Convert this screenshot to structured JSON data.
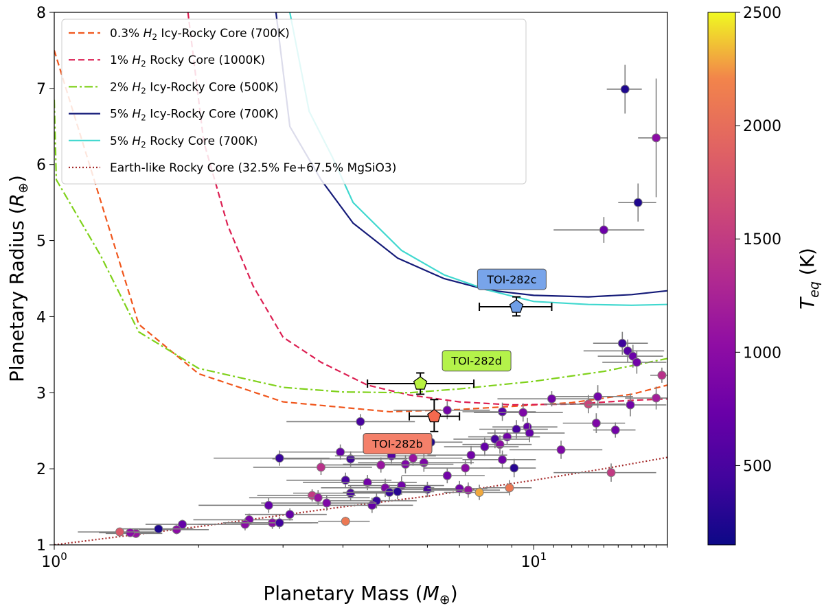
{
  "chart_data": {
    "type": "scatter",
    "title": "",
    "xlabel": "Planetary Mass",
    "xlabel_sym": "M",
    "ylabel": "Planetary Radius",
    "ylabel_sym": "R",
    "earth_symbol": "⊕",
    "xscale": "log",
    "xlim": [
      1,
      19
    ],
    "ylim": [
      1,
      8
    ],
    "x_ticks": [
      {
        "v": 1,
        "base": "10",
        "exp": "0"
      },
      {
        "v": 10,
        "base": "10",
        "exp": "1"
      }
    ],
    "y_ticks": [
      1,
      2,
      3,
      4,
      5,
      6,
      7,
      8
    ],
    "colorbar": {
      "label": "T",
      "label_sub": "eq",
      "unit": "(K)",
      "range": [
        150,
        2500
      ],
      "ticks": [
        500,
        1000,
        1500,
        2000,
        2500
      ]
    },
    "legend_position": "top-left",
    "models": [
      {
        "name": "0.3% H2 Icy-Rocky Core (700K)",
        "pre": "0.3% ",
        "h2": "H",
        "post": " Icy-Rocky Core (700K)",
        "color": "#f0561c",
        "style": "dashed",
        "points": [
          [
            1,
            7.5
          ],
          [
            1.5,
            3.9
          ],
          [
            2,
            3.25
          ],
          [
            3,
            2.88
          ],
          [
            5,
            2.75
          ],
          [
            7,
            2.78
          ],
          [
            9,
            2.82
          ],
          [
            12,
            2.87
          ],
          [
            16,
            2.98
          ],
          [
            19,
            3.1
          ]
        ]
      },
      {
        "name": "1% H2 Rocky Core (1000K)",
        "pre": "1% ",
        "h2": "H",
        "post": " Rocky Core (1000K)",
        "color": "#dc1f52",
        "style": "dashed",
        "points": [
          [
            1.9,
            8
          ],
          [
            2.05,
            6.3
          ],
          [
            2.3,
            5.2
          ],
          [
            2.6,
            4.4
          ],
          [
            3,
            3.73
          ],
          [
            3.6,
            3.4
          ],
          [
            4.5,
            3.1
          ],
          [
            5.5,
            2.97
          ],
          [
            7,
            2.88
          ],
          [
            9,
            2.84
          ],
          [
            12,
            2.85
          ],
          [
            16,
            2.9
          ],
          [
            19,
            2.92
          ]
        ]
      },
      {
        "name": "2% H2 Icy-Rocky Core (500K)",
        "pre": "2% ",
        "h2": "H",
        "post": " Icy-Rocky Core (500K)",
        "color": "#7fd11a",
        "style": "dashdot",
        "points": [
          [
            1,
            6.85
          ],
          [
            1.01,
            5.8
          ],
          [
            1.25,
            4.8
          ],
          [
            1.5,
            3.8
          ],
          [
            2,
            3.32
          ],
          [
            3,
            3.07
          ],
          [
            4,
            3.01
          ],
          [
            5.5,
            3.0
          ],
          [
            7,
            3.05
          ],
          [
            10,
            3.15
          ],
          [
            14,
            3.28
          ],
          [
            19,
            3.45
          ]
        ]
      },
      {
        "name": "5% H2 Icy-Rocky Core (700K)",
        "pre": "5% ",
        "h2": "H",
        "post": " Icy-Rocky Core (700K)",
        "color": "#141a78",
        "style": "solid",
        "points": [
          [
            2.9,
            8
          ],
          [
            3.1,
            6.5
          ],
          [
            3.6,
            5.8
          ],
          [
            4.2,
            5.23
          ],
          [
            5.2,
            4.77
          ],
          [
            6.5,
            4.5
          ],
          [
            8,
            4.35
          ],
          [
            10,
            4.28
          ],
          [
            13,
            4.26
          ],
          [
            16,
            4.29
          ],
          [
            19,
            4.34
          ]
        ]
      },
      {
        "name": "5% H2 Rocky Core (700K)",
        "pre": "5% ",
        "h2": "H",
        "post": " Rocky Core (700K)",
        "color": "#40d8cf",
        "style": "solid",
        "points": [
          [
            3.1,
            8
          ],
          [
            3.4,
            6.7
          ],
          [
            3.8,
            6.1
          ],
          [
            4.2,
            5.5
          ],
          [
            5.3,
            4.87
          ],
          [
            6.5,
            4.55
          ],
          [
            8,
            4.35
          ],
          [
            10,
            4.2
          ],
          [
            13,
            4.16
          ],
          [
            16,
            4.15
          ],
          [
            19,
            4.16
          ]
        ]
      },
      {
        "name": "Earth-like Rocky Core (32.5% Fe+67.5% MgSiO3)",
        "pre": "Earth-like Rocky Core (32.5% Fe+67.5% MgSiO3)",
        "h2": "",
        "post": "",
        "color": "#a52a2a",
        "style": "dotted",
        "points": [
          [
            1,
            1.0
          ],
          [
            2,
            1.24
          ],
          [
            4,
            1.5
          ],
          [
            6,
            1.64
          ],
          [
            10,
            1.85
          ],
          [
            14,
            2.0
          ],
          [
            19,
            2.15
          ]
        ]
      }
    ],
    "toi_planets": [
      {
        "name": "TOI-282b",
        "mass": 6.2,
        "mass_err": [
          0.7,
          0.8
        ],
        "radius": 2.69,
        "radius_err": [
          0.2,
          0.22
        ],
        "color": "#f4694e",
        "label_box": "#f4806a",
        "label_anchor": [
          5.2,
          2.33
        ]
      },
      {
        "name": "TOI-282c",
        "mass": 9.2,
        "mass_err": [
          1.5,
          1.7
        ],
        "radius": 4.13,
        "radius_err": [
          0.12,
          0.13
        ],
        "color": "#6f9ee6",
        "label_box": "#78a4ea",
        "label_anchor": [
          9.0,
          4.49
        ]
      },
      {
        "name": "TOI-282d",
        "mass": 5.8,
        "mass_err": [
          1.3,
          1.7
        ],
        "radius": 3.12,
        "radius_err": [
          0.14,
          0.14
        ],
        "color": "#b9f241",
        "label_box": "#b4f24a",
        "label_anchor": [
          7.6,
          3.42
        ]
      }
    ],
    "planets": [
      {
        "m": 15.5,
        "r": 6.99,
        "ex": 1.3,
        "ey": 0.32,
        "t": 250
      },
      {
        "m": 18.0,
        "r": 6.35,
        "ex": 1.5,
        "ey": 0.78,
        "t": 1000
      },
      {
        "m": 16.5,
        "r": 5.5,
        "ex": 1.5,
        "ey": 0.25,
        "t": 250
      },
      {
        "m": 14.0,
        "r": 5.14,
        "ex": 3.0,
        "ey": 0.17,
        "t": 750
      },
      {
        "m": 15.3,
        "r": 3.65,
        "ex": 2.0,
        "ey": 0.15,
        "t": 420
      },
      {
        "m": 15.7,
        "r": 3.55,
        "ex": 3.0,
        "ey": 0.15,
        "t": 600
      },
      {
        "m": 16.1,
        "r": 3.48,
        "ex": 2.5,
        "ey": 0.15,
        "t": 750
      },
      {
        "m": 16.4,
        "r": 3.4,
        "ex": 2.5,
        "ey": 0.15,
        "t": 800
      },
      {
        "m": 18.5,
        "r": 3.23,
        "ex": 1.0,
        "ey": 0.1,
        "t": 1400
      },
      {
        "m": 18.0,
        "r": 2.93,
        "ex": 2.5,
        "ey": 0.15,
        "t": 1200
      },
      {
        "m": 13.0,
        "r": 2.85,
        "ex": 2.5,
        "ey": 0.12,
        "t": 1600
      },
      {
        "m": 13.6,
        "r": 2.95,
        "ex": 2.5,
        "ey": 0.15,
        "t": 800
      },
      {
        "m": 10.9,
        "r": 2.92,
        "ex": 2.5,
        "ey": 0.1,
        "t": 800
      },
      {
        "m": 15.9,
        "r": 2.84,
        "ex": 3.0,
        "ey": 0.15,
        "t": 800
      },
      {
        "m": 13.5,
        "r": 2.6,
        "ex": 2.0,
        "ey": 0.13,
        "t": 900
      },
      {
        "m": 14.8,
        "r": 2.51,
        "ex": 1.5,
        "ey": 0.1,
        "t": 800
      },
      {
        "m": 11.4,
        "r": 2.25,
        "ex": 2.5,
        "ey": 0.12,
        "t": 900
      },
      {
        "m": 14.5,
        "r": 1.95,
        "ex": 3.5,
        "ey": 0.12,
        "t": 1500
      },
      {
        "m": 4.35,
        "r": 2.62,
        "ex": 1.3,
        "ey": 0.1,
        "t": 500
      },
      {
        "m": 6.1,
        "r": 2.35,
        "ex": 1.0,
        "ey": 0.12,
        "t": 250
      },
      {
        "m": 6.6,
        "r": 2.77,
        "ex": 1.5,
        "ey": 0.12,
        "t": 800
      },
      {
        "m": 8.6,
        "r": 2.75,
        "ex": 1.5,
        "ey": 0.12,
        "t": 600
      },
      {
        "m": 9.5,
        "r": 2.74,
        "ex": 2.0,
        "ey": 0.12,
        "t": 900
      },
      {
        "m": 9.7,
        "r": 2.55,
        "ex": 1.5,
        "ey": 0.12,
        "t": 700
      },
      {
        "m": 9.2,
        "r": 2.52,
        "ex": 1.5,
        "ey": 0.12,
        "t": 500
      },
      {
        "m": 9.8,
        "r": 2.47,
        "ex": 1.8,
        "ey": 0.12,
        "t": 700
      },
      {
        "m": 8.8,
        "r": 2.42,
        "ex": 1.5,
        "ey": 0.1,
        "t": 800
      },
      {
        "m": 8.3,
        "r": 2.39,
        "ex": 1.5,
        "ey": 0.12,
        "t": 500
      },
      {
        "m": 8.5,
        "r": 2.32,
        "ex": 1.4,
        "ey": 0.12,
        "t": 1000
      },
      {
        "m": 7.9,
        "r": 2.29,
        "ex": 1.4,
        "ey": 0.12,
        "t": 700
      },
      {
        "m": 7.4,
        "r": 2.18,
        "ex": 1.4,
        "ey": 0.12,
        "t": 800
      },
      {
        "m": 8.6,
        "r": 2.12,
        "ex": 1.5,
        "ey": 0.12,
        "t": 800
      },
      {
        "m": 9.1,
        "r": 2.01,
        "ex": 1.0,
        "ey": 0.12,
        "t": 300
      },
      {
        "m": 7.2,
        "r": 2.01,
        "ex": 1.3,
        "ey": 0.1,
        "t": 1000
      },
      {
        "m": 6.6,
        "r": 1.91,
        "ex": 1.3,
        "ey": 0.1,
        "t": 800
      },
      {
        "m": 3.95,
        "r": 2.22,
        "ex": 1.0,
        "ey": 0.1,
        "t": 700
      },
      {
        "m": 4.15,
        "r": 2.13,
        "ex": 1.3,
        "ey": 0.1,
        "t": 450
      },
      {
        "m": 5.05,
        "r": 2.17,
        "ex": 1.2,
        "ey": 0.1,
        "t": 600
      },
      {
        "m": 5.6,
        "r": 2.14,
        "ex": 1.5,
        "ey": 0.1,
        "t": 1100
      },
      {
        "m": 5.9,
        "r": 2.08,
        "ex": 1.6,
        "ey": 0.12,
        "t": 900
      },
      {
        "m": 5.4,
        "r": 2.06,
        "ex": 1.4,
        "ey": 0.12,
        "t": 900
      },
      {
        "m": 4.8,
        "r": 2.05,
        "ex": 1.2,
        "ey": 0.1,
        "t": 1100
      },
      {
        "m": 3.6,
        "r": 2.02,
        "ex": 1.0,
        "ey": 0.1,
        "t": 1400
      },
      {
        "m": 2.95,
        "r": 2.14,
        "ex": 0.8,
        "ey": 0.1,
        "t": 400
      },
      {
        "m": 4.05,
        "r": 1.85,
        "ex": 1.0,
        "ey": 0.1,
        "t": 500
      },
      {
        "m": 4.5,
        "r": 1.82,
        "ex": 1.2,
        "ey": 0.1,
        "t": 800
      },
      {
        "m": 5.3,
        "r": 1.78,
        "ex": 1.2,
        "ey": 0.12,
        "t": 800
      },
      {
        "m": 4.9,
        "r": 1.75,
        "ex": 1.3,
        "ey": 0.12,
        "t": 900
      },
      {
        "m": 6.0,
        "r": 1.73,
        "ex": 1.0,
        "ey": 0.1,
        "t": 500
      },
      {
        "m": 7.0,
        "r": 1.74,
        "ex": 1.0,
        "ey": 0.1,
        "t": 800
      },
      {
        "m": 7.3,
        "r": 1.72,
        "ex": 1.2,
        "ey": 0.1,
        "t": 1100
      },
      {
        "m": 7.7,
        "r": 1.69,
        "ex": 1.2,
        "ey": 0.1,
        "t": 2300
      },
      {
        "m": 8.9,
        "r": 1.75,
        "ex": 1.0,
        "ey": 0.1,
        "t": 2100
      },
      {
        "m": 4.15,
        "r": 1.68,
        "ex": 1.0,
        "ey": 0.1,
        "t": 500
      },
      {
        "m": 5.0,
        "r": 1.69,
        "ex": 1.0,
        "ey": 0.1,
        "t": 400
      },
      {
        "m": 5.2,
        "r": 1.7,
        "ex": 1.0,
        "ey": 0.1,
        "t": 300
      },
      {
        "m": 4.7,
        "r": 1.58,
        "ex": 1.0,
        "ey": 0.1,
        "t": 400
      },
      {
        "m": 4.6,
        "r": 1.52,
        "ex": 1.0,
        "ey": 0.1,
        "t": 700
      },
      {
        "m": 3.45,
        "r": 1.65,
        "ex": 0.8,
        "ey": 0.08,
        "t": 1500
      },
      {
        "m": 3.55,
        "r": 1.62,
        "ex": 1.0,
        "ey": 0.1,
        "t": 1100
      },
      {
        "m": 3.7,
        "r": 1.55,
        "ex": 1.0,
        "ey": 0.1,
        "t": 900
      },
      {
        "m": 3.1,
        "r": 1.4,
        "ex": 0.6,
        "ey": 0.08,
        "t": 700
      },
      {
        "m": 2.8,
        "r": 1.52,
        "ex": 0.8,
        "ey": 0.1,
        "t": 700
      },
      {
        "m": 2.55,
        "r": 1.33,
        "ex": 0.6,
        "ey": 0.08,
        "t": 900
      },
      {
        "m": 2.5,
        "r": 1.27,
        "ex": 0.5,
        "ey": 0.08,
        "t": 1000
      },
      {
        "m": 2.85,
        "r": 1.29,
        "ex": 0.6,
        "ey": 0.08,
        "t": 1000
      },
      {
        "m": 2.95,
        "r": 1.29,
        "ex": 0.6,
        "ey": 0.08,
        "t": 450
      },
      {
        "m": 4.05,
        "r": 1.31,
        "ex": 0.5,
        "ey": 0.06,
        "t": 2100
      },
      {
        "m": 1.85,
        "r": 1.27,
        "ex": 0.3,
        "ey": 0.06,
        "t": 700
      },
      {
        "m": 1.8,
        "r": 1.2,
        "ex": 0.3,
        "ey": 0.06,
        "t": 1000
      },
      {
        "m": 1.65,
        "r": 1.21,
        "ex": 0.3,
        "ey": 0.06,
        "t": 250
      },
      {
        "m": 1.48,
        "r": 1.15,
        "ex": 0.2,
        "ey": 0.05,
        "t": 1100
      },
      {
        "m": 1.44,
        "r": 1.16,
        "ex": 0.2,
        "ey": 0.05,
        "t": 1000
      },
      {
        "m": 1.37,
        "r": 1.17,
        "ex": 0.25,
        "ey": 0.05,
        "t": 1800
      }
    ]
  }
}
